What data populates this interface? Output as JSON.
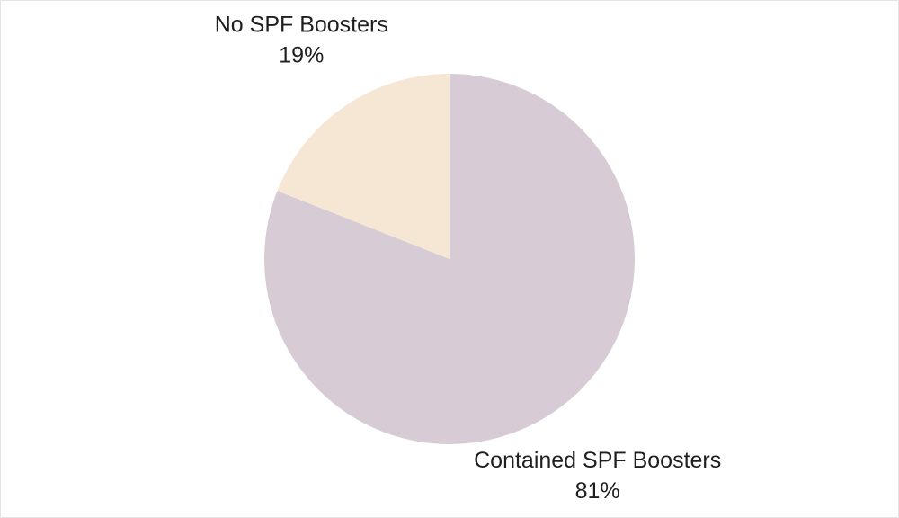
{
  "chart_data": {
    "type": "pie",
    "categories": [
      "Contained SPF Boosters",
      "No SPF Boosters"
    ],
    "values": [
      81,
      19
    ],
    "value_labels": [
      "81%",
      "19%"
    ],
    "colors": [
      "#d7ccd6",
      "#f6e7d5"
    ]
  }
}
